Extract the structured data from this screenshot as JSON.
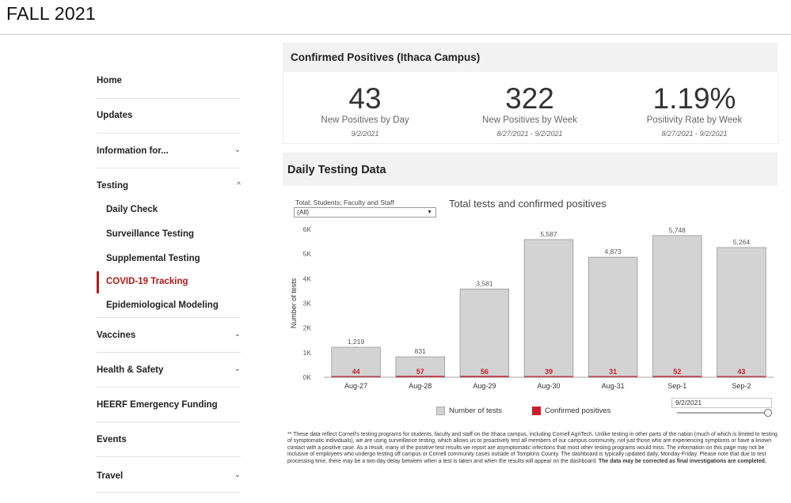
{
  "page": {
    "title": "FALL 2021"
  },
  "sidebar": {
    "items": [
      {
        "label": "Home",
        "chevron": ""
      },
      {
        "label": "Updates",
        "chevron": ""
      },
      {
        "label": "Information for...",
        "chevron": "⌄"
      },
      {
        "label": "Testing",
        "chevron": "^"
      },
      {
        "label": "Vaccines",
        "chevron": "⌄"
      },
      {
        "label": "Health & Safety",
        "chevron": "⌄"
      },
      {
        "label": "HEERF Emergency Funding",
        "chevron": ""
      },
      {
        "label": "Events",
        "chevron": ""
      },
      {
        "label": "Travel",
        "chevron": "⌄"
      }
    ],
    "testing_subitems": [
      {
        "label": "Daily Check"
      },
      {
        "label": "Surveillance Testing"
      },
      {
        "label": "Supplemental Testing"
      },
      {
        "label": "COVID-19 Tracking"
      },
      {
        "label": "Epidemiological Modeling"
      }
    ],
    "active_color": "#b31b1b"
  },
  "positives": {
    "header": "Confirmed Positives (Ithaca Campus)",
    "kpis": [
      {
        "value": "43",
        "label": "New Positives by Day",
        "date": "9/2/2021"
      },
      {
        "value": "322",
        "label": "New Positives by Week",
        "date": "8/27/2021 - 9/2/2021"
      },
      {
        "value": "1.19%",
        "label": "Positivity Rate by Week",
        "date": "8/27/2021 - 9/2/2021"
      }
    ]
  },
  "daily": {
    "header": "Daily Testing Data",
    "filter_label": "Total; Students; Faculty and Staff",
    "filter_value": "(All)",
    "date_filter": "9/2/2021"
  },
  "chart_data": {
    "type": "bar",
    "title": "Total tests and confirmed positives",
    "xlabel": "",
    "ylabel": "Number of tests",
    "categories": [
      "Aug-27",
      "Aug-28",
      "Aug-29",
      "Aug-30",
      "Aug-31",
      "Sep-1",
      "Sep-2"
    ],
    "series": [
      {
        "name": "Number of tests",
        "values": [
          1219,
          831,
          3581,
          5587,
          4873,
          5748,
          5264
        ],
        "color": "#d3d3d3",
        "labels": [
          "1,219",
          "831",
          "3,581",
          "5,587",
          "4,873",
          "5,748",
          "5,264"
        ]
      },
      {
        "name": "Confirmed positives",
        "values": [
          44,
          57,
          56,
          39,
          31,
          52,
          43
        ],
        "color": "#c8202f"
      }
    ],
    "ylim": [
      0,
      6000
    ],
    "yticks": [
      {
        "value": 0,
        "label": "0K"
      },
      {
        "value": 1000,
        "label": "1K"
      },
      {
        "value": 2000,
        "label": "2K"
      },
      {
        "value": 3000,
        "label": "3K"
      },
      {
        "value": 4000,
        "label": "4K"
      },
      {
        "value": 5000,
        "label": "5K"
      },
      {
        "value": 6000,
        "label": "6K"
      }
    ],
    "grid": false,
    "legend": "bottom"
  },
  "footnote": {
    "text": "** These data reflect Cornell's testing programs for students, faculty and staff on the Ithaca campus, including Cornell AgriTech. Unlike testing in other parts of the nation (much of which is limited to testing of symptomatic individuals), we are using surveillance testing, which allows us to proactively test all members of our campus community, not just those who are experiencing symptoms or have a known contact with a positive case. As a result, many of the positive test results we report are asymptomatic infections that most other testing programs would miss. The information on this page may not be inclusive of employees who undergo testing off campus or Cornell community cases outside of Tompkins County. The dashboard is typically updated daily, Monday-Friday. Please note that due to test processing time, there may be a two-day delay between when a test is taken and when the results will appear on the dashboard.",
    "bold": "The data may be corrected as final investigations are completed."
  }
}
